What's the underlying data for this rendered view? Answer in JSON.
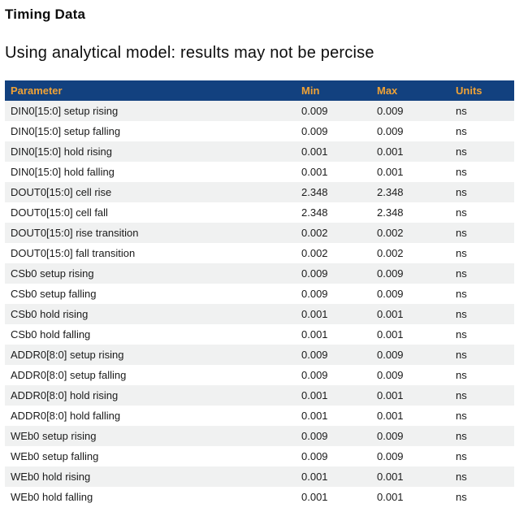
{
  "page": {
    "title": "Timing Data",
    "subtitle": "Using analytical model: results may not be percise"
  },
  "table": {
    "columns": [
      "Parameter",
      "Min",
      "Max",
      "Units"
    ],
    "rows": [
      {
        "parameter": "DIN0[15:0] setup rising",
        "min": "0.009",
        "max": "0.009",
        "units": "ns"
      },
      {
        "parameter": "DIN0[15:0] setup falling",
        "min": "0.009",
        "max": "0.009",
        "units": "ns"
      },
      {
        "parameter": "DIN0[15:0] hold rising",
        "min": "0.001",
        "max": "0.001",
        "units": "ns"
      },
      {
        "parameter": "DIN0[15:0] hold falling",
        "min": "0.001",
        "max": "0.001",
        "units": "ns"
      },
      {
        "parameter": "DOUT0[15:0] cell rise",
        "min": "2.348",
        "max": "2.348",
        "units": "ns"
      },
      {
        "parameter": "DOUT0[15:0] cell fall",
        "min": "2.348",
        "max": "2.348",
        "units": "ns"
      },
      {
        "parameter": "DOUT0[15:0] rise transition",
        "min": "0.002",
        "max": "0.002",
        "units": "ns"
      },
      {
        "parameter": "DOUT0[15:0] fall transition",
        "min": "0.002",
        "max": "0.002",
        "units": "ns"
      },
      {
        "parameter": "CSb0 setup rising",
        "min": "0.009",
        "max": "0.009",
        "units": "ns"
      },
      {
        "parameter": "CSb0 setup falling",
        "min": "0.009",
        "max": "0.009",
        "units": "ns"
      },
      {
        "parameter": "CSb0 hold rising",
        "min": "0.001",
        "max": "0.001",
        "units": "ns"
      },
      {
        "parameter": "CSb0 hold falling",
        "min": "0.001",
        "max": "0.001",
        "units": "ns"
      },
      {
        "parameter": "ADDR0[8:0] setup rising",
        "min": "0.009",
        "max": "0.009",
        "units": "ns"
      },
      {
        "parameter": "ADDR0[8:0] setup falling",
        "min": "0.009",
        "max": "0.009",
        "units": "ns"
      },
      {
        "parameter": "ADDR0[8:0] hold rising",
        "min": "0.001",
        "max": "0.001",
        "units": "ns"
      },
      {
        "parameter": "ADDR0[8:0] hold falling",
        "min": "0.001",
        "max": "0.001",
        "units": "ns"
      },
      {
        "parameter": "WEb0 setup rising",
        "min": "0.009",
        "max": "0.009",
        "units": "ns"
      },
      {
        "parameter": "WEb0 setup falling",
        "min": "0.009",
        "max": "0.009",
        "units": "ns"
      },
      {
        "parameter": "WEb0 hold rising",
        "min": "0.001",
        "max": "0.001",
        "units": "ns"
      },
      {
        "parameter": "WEb0 hold falling",
        "min": "0.001",
        "max": "0.001",
        "units": "ns"
      }
    ]
  },
  "colors": {
    "header_bg": "#12417f",
    "header_text": "#efa236",
    "row_alt_bg": "#f0f1f1",
    "row_text": "#1b1b1b"
  }
}
